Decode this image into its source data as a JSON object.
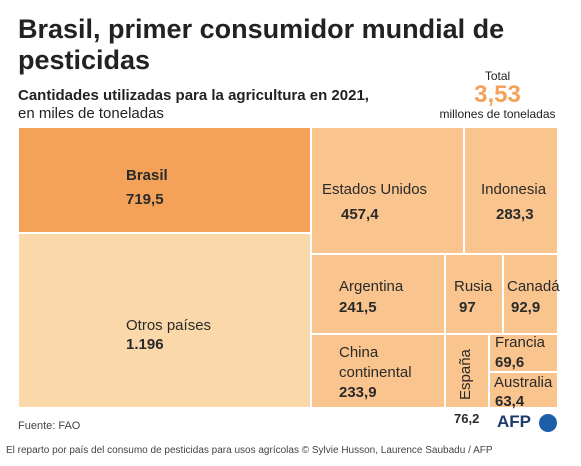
{
  "header": {
    "title": "Brasil, primer consumidor mundial de pesticidas",
    "subtitle_line1": "Cantidades utilizadas para la agricultura en 2021,",
    "subtitle_line2": "en miles de toneladas"
  },
  "total": {
    "label": "Total",
    "value": "3,53",
    "unit": "millones de toneladas"
  },
  "chart_data": {
    "type": "treemap",
    "title": "Brasil, primer consumidor mundial de pesticidas",
    "unit": "miles de toneladas",
    "items": [
      {
        "name": "Brasil",
        "label": "719,5",
        "value": 719.5,
        "color": "#f4a259"
      },
      {
        "name": "Otros países",
        "label": "1.196",
        "value": 1196,
        "color": "#fbd8aa"
      },
      {
        "name": "Estados Unidos",
        "label": "457,4",
        "value": 457.4,
        "color": "#f9c48e"
      },
      {
        "name": "Indonesia",
        "label": "283,3",
        "value": 283.3,
        "color": "#f9c48e"
      },
      {
        "name": "Argentina",
        "label": "241,5",
        "value": 241.5,
        "color": "#f9c48e"
      },
      {
        "name": "Russia",
        "display": "Rusia",
        "label": "97",
        "value": 97,
        "color": "#f9c48e"
      },
      {
        "name": "Canadá",
        "label": "92,9",
        "value": 92.9,
        "color": "#f9c48e"
      },
      {
        "name": "China continental",
        "label": "233,9",
        "value": 233.9,
        "color": "#f9c48e"
      },
      {
        "name": "España",
        "label": "76,2",
        "value": 76.2,
        "color": "#f9c48e"
      },
      {
        "name": "Francia",
        "label": "69,6",
        "value": 69.6,
        "color": "#f9c48e"
      },
      {
        "name": "Australia",
        "label": "63,4",
        "value": 63.4,
        "color": "#f9c48e"
      }
    ]
  },
  "source": "Fuente: FAO",
  "logo": "AFP",
  "footer": "El reparto por país del consumo de pesticidas para usos agrícolas © Sylvie Husson, Laurence Saubadu / AFP"
}
